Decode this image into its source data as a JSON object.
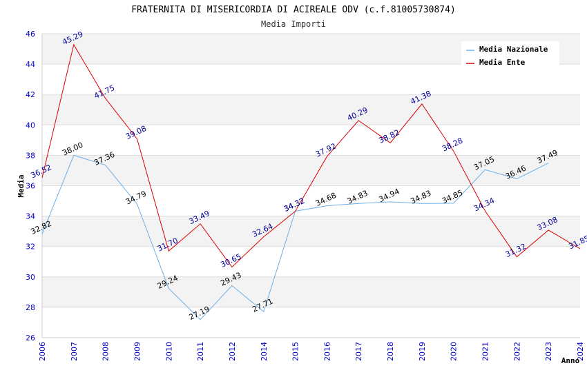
{
  "chart_data": {
    "type": "line",
    "title": "FRATERNITA DI MISERICORDIA DI ACIREALE ODV (c.f.81005730874)",
    "subtitle": "Media Importi",
    "xlabel": "Anno",
    "ylabel": "Media",
    "ylim": [
      26,
      46
    ],
    "yticks": [
      "26",
      "28",
      "30",
      "32",
      "34",
      "36",
      "38",
      "40",
      "42",
      "44",
      "46"
    ],
    "categories": [
      "2006",
      "2007",
      "2008",
      "2009",
      "2010",
      "2011",
      "2012",
      "2014",
      "2015",
      "2016",
      "2017",
      "2018",
      "2019",
      "2020",
      "2021",
      "2022",
      "2023",
      "2024"
    ],
    "grid": true,
    "legend_position": "top-right",
    "series": [
      {
        "name": "Media Nazionale",
        "color": "#6aaee8",
        "label_color": "#000000",
        "values": [
          32.82,
          38.0,
          37.36,
          34.79,
          29.24,
          27.19,
          29.43,
          27.71,
          34.32,
          34.68,
          34.83,
          34.94,
          34.83,
          34.85,
          37.05,
          36.46,
          37.49,
          null
        ],
        "labels": [
          "32.82",
          "38.00",
          "37.36",
          "34.79",
          "29.24",
          "27.19",
          "29.43",
          "27.71",
          "34.32",
          "34.68",
          "34.83",
          "34.94",
          "34.83",
          "34.85",
          "37.05",
          "36.46",
          "37.49",
          ""
        ]
      },
      {
        "name": "Media Ente",
        "color": "#dd0000",
        "label_color": "#000099",
        "values": [
          36.52,
          45.29,
          41.75,
          39.08,
          31.7,
          33.49,
          30.65,
          32.64,
          34.32,
          37.92,
          40.29,
          38.82,
          41.38,
          38.28,
          34.34,
          31.32,
          33.08,
          31.85
        ],
        "labels": [
          "36.52",
          "45.29",
          "41.75",
          "39.08",
          "31.70",
          "33.49",
          "30.65",
          "32.64",
          "34.32",
          "37.92",
          "40.29",
          "38.82",
          "41.38",
          "38.28",
          "34.34",
          "31.32",
          "33.08",
          "31.85"
        ]
      }
    ]
  }
}
